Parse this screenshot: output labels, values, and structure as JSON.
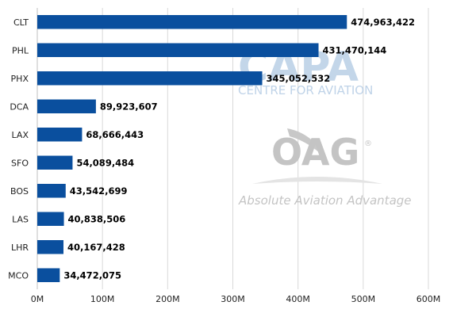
{
  "chart_data": {
    "type": "bar",
    "orientation": "horizontal",
    "categories": [
      "CLT",
      "PHL",
      "PHX",
      "DCA",
      "LAX",
      "SFO",
      "BOS",
      "LAS",
      "LHR",
      "MCO"
    ],
    "values": [
      474963422,
      431470144,
      345052532,
      89923607,
      68666443,
      54089484,
      43542699,
      40838506,
      40167428,
      34472075
    ],
    "value_labels": [
      "474,963,422",
      "431,470,144",
      "345,052,532",
      "89,923,607",
      "68,666,443",
      "54,089,484",
      "43,542,699",
      "40,838,506",
      "40,167,428",
      "34,472,075"
    ],
    "xlim": [
      0,
      600000000
    ],
    "xticks": [
      0,
      100000000,
      200000000,
      300000000,
      400000000,
      500000000,
      600000000
    ],
    "xtick_labels": [
      "0M",
      "100M",
      "200M",
      "300M",
      "400M",
      "500M",
      "600M"
    ],
    "title": "",
    "xlabel": "",
    "ylabel": "",
    "grid": "vertical",
    "bar_color": "#0a4f9e",
    "grid_color": "#d9d9d9"
  },
  "watermarks": {
    "capa_logo": "CAPA",
    "capa_sub": "CENTRE FOR AVIATION",
    "oag_logo": "OAG",
    "oag_mark": "®",
    "oag_tagline": "Absolute Aviation Advantage"
  }
}
